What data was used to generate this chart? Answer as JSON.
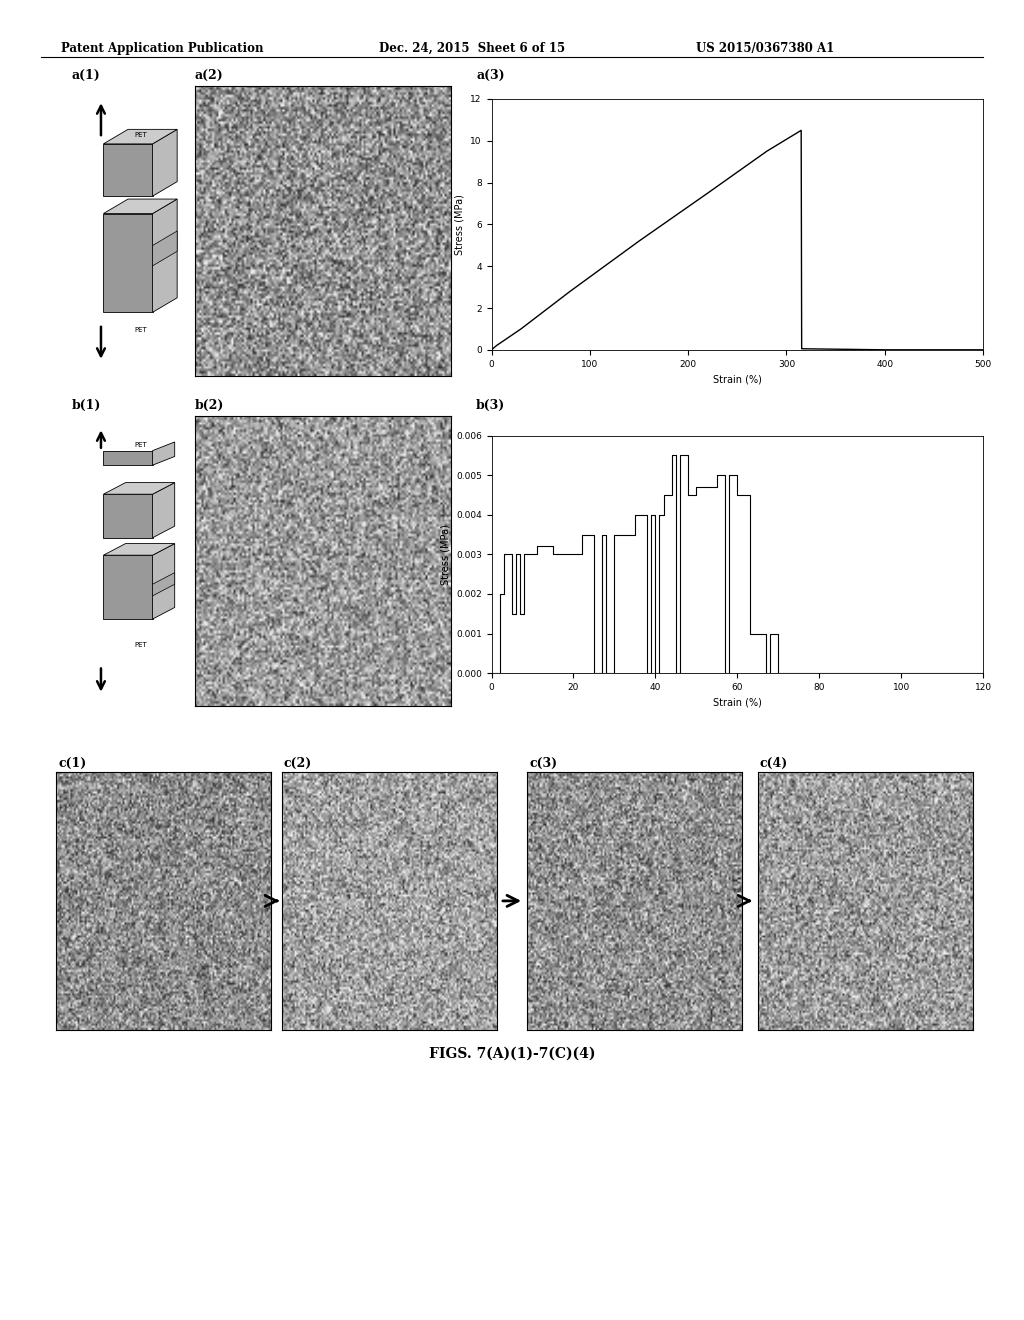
{
  "bg_color": "#ffffff",
  "header_left": "Patent Application Publication",
  "header_mid": "Dec. 24, 2015  Sheet 6 of 15",
  "header_right": "US 2015/0367380 A1",
  "caption": "FIGS. 7(A)(1)-7(C)(4)",
  "a3_xlabel": "Strain (%)",
  "a3_ylabel": "Stress (MPa)",
  "a3_xlim": [
    0,
    500
  ],
  "a3_ylim": [
    0,
    12
  ],
  "a3_xticks": [
    0,
    100,
    200,
    300,
    400,
    500
  ],
  "a3_yticks": [
    0,
    2,
    4,
    6,
    8,
    10,
    12
  ],
  "b3_xlabel": "Strain (%)",
  "b3_ylabel": "Stress (MPa)",
  "b3_xlim": [
    0,
    120
  ],
  "b3_ylim": [
    0.0,
    0.006
  ],
  "b3_xticks": [
    0,
    20,
    40,
    60,
    80,
    100,
    120
  ],
  "b3_yticks": [
    0.0,
    0.001,
    0.002,
    0.003,
    0.004,
    0.005,
    0.006
  ],
  "label_a1": "a(1)",
  "label_a2": "a(2)",
  "label_a3": "a(3)",
  "label_b1": "b(1)",
  "label_b2": "b(2)",
  "label_b3": "b(3)",
  "label_c1": "c(1)",
  "label_c2": "c(2)",
  "label_c3": "c(3)",
  "label_c4": "c(4)"
}
